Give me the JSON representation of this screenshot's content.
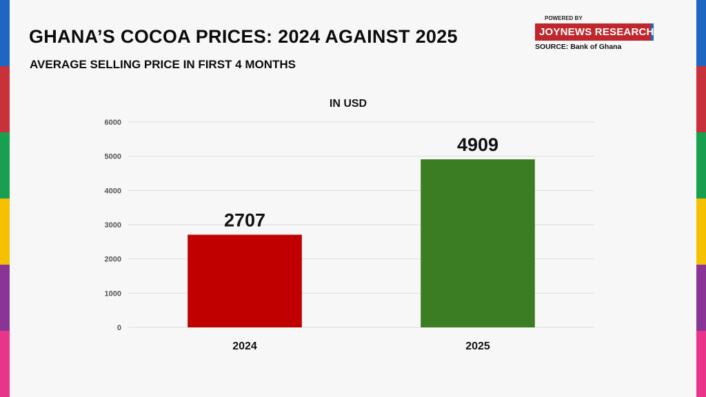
{
  "header": {
    "title": "GHANA’S COCOA PRICES: 2024 AGAINST 2025",
    "subtitle": "AVERAGE SELLING PRICE IN FIRST 4 MONTHS"
  },
  "brand": {
    "powered_by": "POWERED BY",
    "name": "JOYNEWS RESEARCH",
    "source": "SOURCE: Bank of Ghana"
  },
  "colors": {
    "background": "#f7f7f7",
    "bar_2024": "#c00000",
    "bar_2025": "#3a7d22",
    "brand_red": "#c0272d",
    "stripes": [
      "#1f66c2",
      "#c8303a",
      "#18a050",
      "#f5c000",
      "#8a3596",
      "#e8358a"
    ]
  },
  "chart_data": {
    "type": "bar",
    "title": "IN USD",
    "categories": [
      "2024",
      "2025"
    ],
    "values": [
      2707,
      4909
    ],
    "colors": [
      "#c00000",
      "#3a7d22"
    ],
    "ylim": [
      0,
      6000
    ],
    "yticks": [
      0,
      1000,
      2000,
      3000,
      4000,
      5000,
      6000
    ],
    "grid": true,
    "xlabel": "",
    "ylabel": ""
  }
}
